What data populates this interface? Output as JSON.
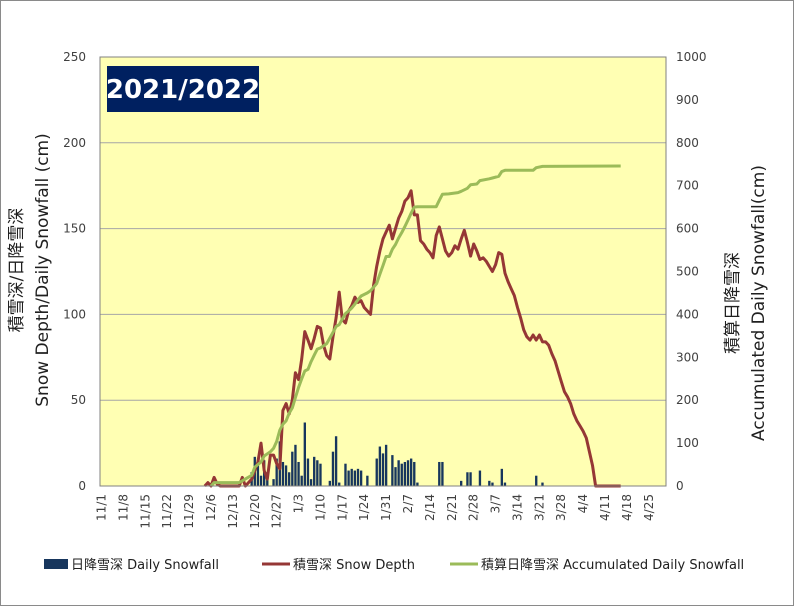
{
  "chart_data": {
    "type": "combo-bar-line",
    "season_label": "2021/2022",
    "ylabel_left": "積雪深/日降雪深 Snow Depth/Daily Snowfall (cm)",
    "ylabel_left_line1": "積雪深/日降雪深",
    "ylabel_left_line2": "Snow Depth/Daily Snowfall (cm)",
    "ylabel_right": "積算日降雪深 Accumulated Daily Snowfall(cm)",
    "ylabel_right_line1": "積算日降雪深",
    "ylabel_right_line2": "Accumulated Daily Snowfall(cm)",
    "ylim_left": [
      0,
      250
    ],
    "ylim_right": [
      0,
      1000
    ],
    "yticks_left": [
      "0",
      "50",
      "100",
      "150",
      "200",
      "250"
    ],
    "yticks_right": [
      "0",
      "100",
      "200",
      "300",
      "400",
      "500",
      "600",
      "700",
      "800",
      "900",
      "1000"
    ],
    "x_start": "11/1",
    "x_end": "4/30",
    "xticks": [
      "11/1",
      "11/8",
      "11/15",
      "11/22",
      "11/29",
      "12/6",
      "12/13",
      "12/20",
      "12/27",
      "1/3",
      "1/10",
      "1/17",
      "1/24",
      "1/31",
      "2/7",
      "2/14",
      "2/21",
      "2/28",
      "3/7",
      "3/14",
      "3/21",
      "3/28",
      "4/4",
      "4/11",
      "4/18",
      "4/25"
    ],
    "grid": true,
    "legend_position": "bottom",
    "colors": {
      "plot_bg": "#ffffb3",
      "daily": "#17365d",
      "depth": "#953735",
      "accum": "#9bbb59",
      "season_box": "#002060",
      "grid": "#a6a6a6"
    },
    "series": [
      {
        "name": "日降雪深 Daily Snowfall",
        "kind": "bar",
        "axis": "left",
        "points": [
          [
            "12/19",
            8
          ],
          [
            "12/20",
            17
          ],
          [
            "12/21",
            12
          ],
          [
            "12/22",
            6
          ],
          [
            "12/23",
            15
          ],
          [
            "12/24",
            8
          ],
          [
            "12/26",
            4
          ],
          [
            "12/27",
            16
          ],
          [
            "12/28",
            26
          ],
          [
            "12/29",
            14
          ],
          [
            "12/30",
            12
          ],
          [
            "12/31",
            8
          ],
          [
            "1/1",
            20
          ],
          [
            "1/2",
            24
          ],
          [
            "1/3",
            14
          ],
          [
            "1/4",
            6
          ],
          [
            "1/5",
            37
          ],
          [
            "1/6",
            16
          ],
          [
            "1/7",
            4
          ],
          [
            "1/8",
            17
          ],
          [
            "1/9",
            15
          ],
          [
            "1/10",
            13
          ],
          [
            "1/13",
            3
          ],
          [
            "1/14",
            20
          ],
          [
            "1/15",
            29
          ],
          [
            "1/16",
            2
          ],
          [
            "1/18",
            13
          ],
          [
            "1/19",
            9
          ],
          [
            "1/20",
            10
          ],
          [
            "1/21",
            9
          ],
          [
            "1/22",
            10
          ],
          [
            "1/23",
            9
          ],
          [
            "1/25",
            6
          ],
          [
            "1/28",
            16
          ],
          [
            "1/29",
            23
          ],
          [
            "1/30",
            19
          ],
          [
            "1/31",
            24
          ],
          [
            "2/2",
            18
          ],
          [
            "2/3",
            11
          ],
          [
            "2/4",
            15
          ],
          [
            "2/5",
            13
          ],
          [
            "2/6",
            14
          ],
          [
            "2/7",
            15
          ],
          [
            "2/8",
            16
          ],
          [
            "2/9",
            14
          ],
          [
            "2/10",
            2
          ],
          [
            "2/17",
            14
          ],
          [
            "2/18",
            14
          ],
          [
            "2/24",
            3
          ],
          [
            "2/26",
            8
          ],
          [
            "2/27",
            8
          ],
          [
            "3/2",
            9
          ],
          [
            "3/5",
            3
          ],
          [
            "3/6",
            2
          ],
          [
            "3/9",
            10
          ],
          [
            "3/10",
            2
          ],
          [
            "3/20",
            6
          ],
          [
            "3/22",
            2
          ]
        ]
      },
      {
        "name": "積雪深 Snow Depth",
        "kind": "line",
        "axis": "left",
        "points": [
          [
            "12/4",
            0
          ],
          [
            "12/5",
            2
          ],
          [
            "12/6",
            0
          ],
          [
            "12/7",
            5
          ],
          [
            "12/8",
            1
          ],
          [
            "12/9",
            0
          ],
          [
            "12/15",
            0
          ],
          [
            "12/16",
            5
          ],
          [
            "12/17",
            0
          ],
          [
            "12/19",
            4
          ],
          [
            "12/21",
            14
          ],
          [
            "12/22",
            25
          ],
          [
            "12/23",
            9
          ],
          [
            "12/24",
            4
          ],
          [
            "12/25",
            18
          ],
          [
            "12/26",
            18
          ],
          [
            "12/27",
            13
          ],
          [
            "12/28",
            10
          ],
          [
            "12/29",
            44
          ],
          [
            "12/30",
            48
          ],
          [
            "12/31",
            42
          ],
          [
            "1/1",
            50
          ],
          [
            "1/2",
            66
          ],
          [
            "1/3",
            62
          ],
          [
            "1/4",
            74
          ],
          [
            "1/5",
            90
          ],
          [
            "1/6",
            85
          ],
          [
            "1/7",
            80
          ],
          [
            "1/8",
            86
          ],
          [
            "1/9",
            93
          ],
          [
            "1/10",
            92
          ],
          [
            "1/11",
            82
          ],
          [
            "1/12",
            76
          ],
          [
            "1/13",
            74
          ],
          [
            "1/14",
            87
          ],
          [
            "1/15",
            98
          ],
          [
            "1/16",
            113
          ],
          [
            "1/17",
            97
          ],
          [
            "1/18",
            95
          ],
          [
            "1/19",
            102
          ],
          [
            "1/20",
            105
          ],
          [
            "1/21",
            110
          ],
          [
            "1/22",
            107
          ],
          [
            "1/23",
            108
          ],
          [
            "1/24",
            104
          ],
          [
            "1/25",
            102
          ],
          [
            "1/26",
            100
          ],
          [
            "1/27",
            117
          ],
          [
            "1/28",
            128
          ],
          [
            "1/29",
            137
          ],
          [
            "1/30",
            144
          ],
          [
            "1/31",
            148
          ],
          [
            "2/1",
            152
          ],
          [
            "2/2",
            144
          ],
          [
            "2/3",
            150
          ],
          [
            "2/4",
            156
          ],
          [
            "2/5",
            160
          ],
          [
            "2/6",
            166
          ],
          [
            "2/7",
            168
          ],
          [
            "2/8",
            172
          ],
          [
            "2/9",
            158
          ],
          [
            "2/10",
            158
          ],
          [
            "2/11",
            143
          ],
          [
            "2/12",
            141
          ],
          [
            "2/13",
            138
          ],
          [
            "2/14",
            136
          ],
          [
            "2/15",
            133
          ],
          [
            "2/16",
            146
          ],
          [
            "2/17",
            151
          ],
          [
            "2/18",
            144
          ],
          [
            "2/19",
            137
          ],
          [
            "2/20",
            134
          ],
          [
            "2/21",
            136
          ],
          [
            "2/22",
            140
          ],
          [
            "2/23",
            138
          ],
          [
            "2/24",
            144
          ],
          [
            "2/25",
            149
          ],
          [
            "2/26",
            142
          ],
          [
            "2/27",
            134
          ],
          [
            "2/28",
            141
          ],
          [
            "3/1",
            137
          ],
          [
            "3/2",
            132
          ],
          [
            "3/3",
            133
          ],
          [
            "3/4",
            131
          ],
          [
            "3/5",
            128
          ],
          [
            "3/6",
            125
          ],
          [
            "3/7",
            129
          ],
          [
            "3/8",
            136
          ],
          [
            "3/9",
            135
          ],
          [
            "3/10",
            124
          ],
          [
            "3/11",
            119
          ],
          [
            "3/12",
            115
          ],
          [
            "3/13",
            111
          ],
          [
            "3/14",
            104
          ],
          [
            "3/15",
            98
          ],
          [
            "3/16",
            91
          ],
          [
            "3/17",
            87
          ],
          [
            "3/18",
            85
          ],
          [
            "3/19",
            88
          ],
          [
            "3/20",
            85
          ],
          [
            "3/21",
            88
          ],
          [
            "3/22",
            84
          ],
          [
            "3/23",
            84
          ],
          [
            "3/24",
            82
          ],
          [
            "3/25",
            77
          ],
          [
            "3/26",
            73
          ],
          [
            "3/27",
            67
          ],
          [
            "3/28",
            61
          ],
          [
            "3/29",
            55
          ],
          [
            "3/30",
            52
          ],
          [
            "3/31",
            48
          ],
          [
            "4/1",
            42
          ],
          [
            "4/2",
            38
          ],
          [
            "4/3",
            35
          ],
          [
            "4/4",
            32
          ],
          [
            "4/5",
            28
          ],
          [
            "4/6",
            20
          ],
          [
            "4/7",
            12
          ],
          [
            "4/8",
            0
          ],
          [
            "4/16",
            0
          ]
        ]
      },
      {
        "name": "積算日降雪深 Accumulated Daily Snowfall",
        "kind": "line",
        "axis": "right",
        "points": [
          [
            "12/6",
            0
          ],
          [
            "12/7",
            8
          ],
          [
            "12/15",
            8
          ],
          [
            "12/19",
            25
          ],
          [
            "12/20",
            44
          ],
          [
            "12/22",
            56
          ],
          [
            "12/23",
            70
          ],
          [
            "12/25",
            80
          ],
          [
            "12/26",
            88
          ],
          [
            "12/27",
            104
          ],
          [
            "12/28",
            130
          ],
          [
            "12/29",
            144
          ],
          [
            "12/30",
            152
          ],
          [
            "12/31",
            170
          ],
          [
            "1/1",
            182
          ],
          [
            "1/2",
            206
          ],
          [
            "1/3",
            230
          ],
          [
            "1/4",
            250
          ],
          [
            "1/5",
            268
          ],
          [
            "1/6",
            272
          ],
          [
            "1/7",
            290
          ],
          [
            "1/8",
            305
          ],
          [
            "1/9",
            319
          ],
          [
            "1/10",
            322
          ],
          [
            "1/12",
            332
          ],
          [
            "1/14",
            358
          ],
          [
            "1/15",
            372
          ],
          [
            "1/16",
            376
          ],
          [
            "1/17",
            389
          ],
          [
            "1/18",
            402
          ],
          [
            "1/19",
            408
          ],
          [
            "1/20",
            415
          ],
          [
            "1/21",
            424
          ],
          [
            "1/22",
            434
          ],
          [
            "1/23",
            443
          ],
          [
            "1/25",
            450
          ],
          [
            "1/26",
            455
          ],
          [
            "1/28",
            472
          ],
          [
            "1/29",
            494
          ],
          [
            "1/30",
            514
          ],
          [
            "1/31",
            535
          ],
          [
            "2/1",
            535
          ],
          [
            "2/2",
            552
          ],
          [
            "2/3",
            563
          ],
          [
            "2/4",
            578
          ],
          [
            "2/5",
            591
          ],
          [
            "2/6",
            605
          ],
          [
            "2/7",
            620
          ],
          [
            "2/8",
            636
          ],
          [
            "2/9",
            650
          ],
          [
            "2/10",
            651
          ],
          [
            "2/16",
            651
          ],
          [
            "2/17",
            666
          ],
          [
            "2/18",
            680
          ],
          [
            "2/20",
            681
          ],
          [
            "2/23",
            684
          ],
          [
            "2/24",
            687
          ],
          [
            "2/26",
            694
          ],
          [
            "2/27",
            702
          ],
          [
            "3/1",
            704
          ],
          [
            "3/2",
            712
          ],
          [
            "3/5",
            716
          ],
          [
            "3/6",
            718
          ],
          [
            "3/8",
            722
          ],
          [
            "3/9",
            733
          ],
          [
            "3/10",
            736
          ],
          [
            "3/19",
            736
          ],
          [
            "3/20",
            742
          ],
          [
            "3/22",
            745
          ],
          [
            "4/16",
            746
          ]
        ]
      }
    ]
  }
}
